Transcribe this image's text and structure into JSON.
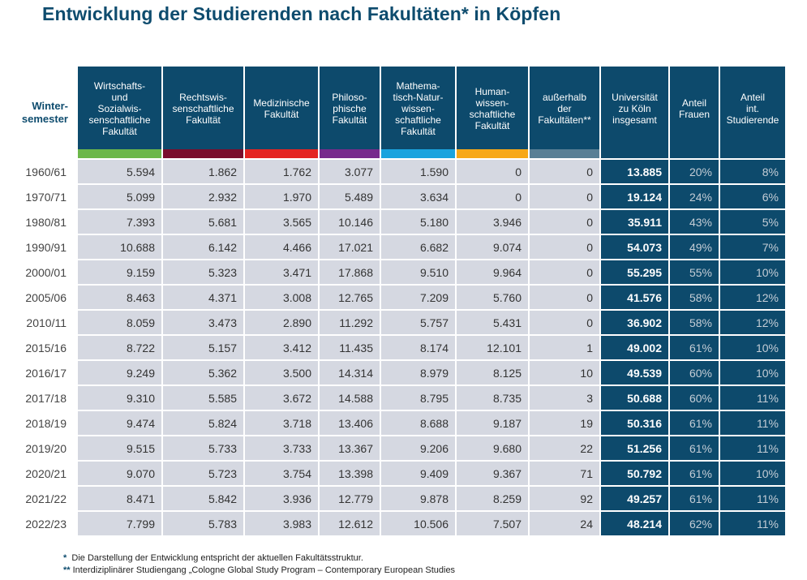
{
  "title": "Entwicklung der Studierenden nach Fakultäten* in Köpfen",
  "table": {
    "semester_header": "Winter-\nsemester",
    "columns": [
      {
        "label": "Wirtschafts-\nund\nSozialwis-\nsenschaftliche\nFakultät",
        "color": "#6cb74a"
      },
      {
        "label": "Rechtswis-\nsenschaftliche\nFakultät",
        "color": "#7a0e2c"
      },
      {
        "label": "Medizinische\nFakultät",
        "color": "#e42421"
      },
      {
        "label": "Philoso-\nphische\nFakultät",
        "color": "#772a8c"
      },
      {
        "label": "Mathema-\ntisch-Natur-\nwissen-\nschaftliche\nFakultät",
        "color": "#1aa3de"
      },
      {
        "label": "Human-\nwissen-\nschaftliche\nFakultät",
        "color": "#f7a818"
      },
      {
        "label": "außerhalb\nder\nFakultäten**",
        "color": "#587f95"
      }
    ],
    "total_header": "Universität\nzu Köln\ninsgesamt",
    "women_header": "Anteil\nFrauen",
    "intl_header": "Anteil\nint.\nStudierende",
    "rows": [
      {
        "semester": "1960/61",
        "values": [
          "5.594",
          "1.862",
          "1.762",
          "3.077",
          "1.590",
          "0",
          "0"
        ],
        "total": "13.885",
        "women": "20%",
        "intl": "8%"
      },
      {
        "semester": "1970/71",
        "values": [
          "5.099",
          "2.932",
          "1.970",
          "5.489",
          "3.634",
          "0",
          "0"
        ],
        "total": "19.124",
        "women": "24%",
        "intl": "6%"
      },
      {
        "semester": "1980/81",
        "values": [
          "7.393",
          "5.681",
          "3.565",
          "10.146",
          "5.180",
          "3.946",
          "0"
        ],
        "total": "35.911",
        "women": "43%",
        "intl": "5%"
      },
      {
        "semester": "1990/91",
        "values": [
          "10.688",
          "6.142",
          "4.466",
          "17.021",
          "6.682",
          "9.074",
          "0"
        ],
        "total": "54.073",
        "women": "49%",
        "intl": "7%"
      },
      {
        "semester": "2000/01",
        "values": [
          "9.159",
          "5.323",
          "3.471",
          "17.868",
          "9.510",
          "9.964",
          "0"
        ],
        "total": "55.295",
        "women": "55%",
        "intl": "10%"
      },
      {
        "semester": "2005/06",
        "values": [
          "8.463",
          "4.371",
          "3.008",
          "12.765",
          "7.209",
          "5.760",
          "0"
        ],
        "total": "41.576",
        "women": "58%",
        "intl": "12%"
      },
      {
        "semester": "2010/11",
        "values": [
          "8.059",
          "3.473",
          "2.890",
          "11.292",
          "5.757",
          "5.431",
          "0"
        ],
        "total": "36.902",
        "women": "58%",
        "intl": "12%"
      },
      {
        "semester": "2015/16",
        "values": [
          "8.722",
          "5.157",
          "3.412",
          "11.435",
          "8.174",
          "12.101",
          "1"
        ],
        "total": "49.002",
        "women": "61%",
        "intl": "10%"
      },
      {
        "semester": "2016/17",
        "values": [
          "9.249",
          "5.362",
          "3.500",
          "14.314",
          "8.979",
          "8.125",
          "10"
        ],
        "total": "49.539",
        "women": "60%",
        "intl": "10%"
      },
      {
        "semester": "2017/18",
        "values": [
          "9.310",
          "5.585",
          "3.672",
          "14.588",
          "8.795",
          "8.735",
          "3"
        ],
        "total": "50.688",
        "women": "60%",
        "intl": "11%"
      },
      {
        "semester": "2018/19",
        "values": [
          "9.474",
          "5.824",
          "3.718",
          "13.406",
          "8.688",
          "9.187",
          "19"
        ],
        "total": "50.316",
        "women": "61%",
        "intl": "11%"
      },
      {
        "semester": "2019/20",
        "values": [
          "9.515",
          "5.733",
          "3.733",
          "13.367",
          "9.206",
          "9.680",
          "22"
        ],
        "total": "51.256",
        "women": "61%",
        "intl": "11%"
      },
      {
        "semester": "2020/21",
        "values": [
          "9.070",
          "5.723",
          "3.754",
          "13.398",
          "9.409",
          "9.367",
          "71"
        ],
        "total": "50.792",
        "women": "61%",
        "intl": "10%"
      },
      {
        "semester": "2021/22",
        "values": [
          "8.471",
          "5.842",
          "3.936",
          "12.779",
          "9.878",
          "8.259",
          "92"
        ],
        "total": "49.257",
        "women": "61%",
        "intl": "11%"
      },
      {
        "semester": "2022/23",
        "values": [
          "7.799",
          "5.783",
          "3.983",
          "12.612",
          "10.506",
          "7.507",
          "24"
        ],
        "total": "48.214",
        "women": "62%",
        "intl": "11%"
      }
    ]
  },
  "footnotes": [
    {
      "marker": "*",
      "text": "Die Darstellung der Entwicklung entspricht der aktuellen Fakultätsstruktur."
    },
    {
      "marker": "**",
      "text": "Interdiziplinärer Studiengang „Cologne Global Study Program – Contemporary European Studies"
    }
  ]
}
